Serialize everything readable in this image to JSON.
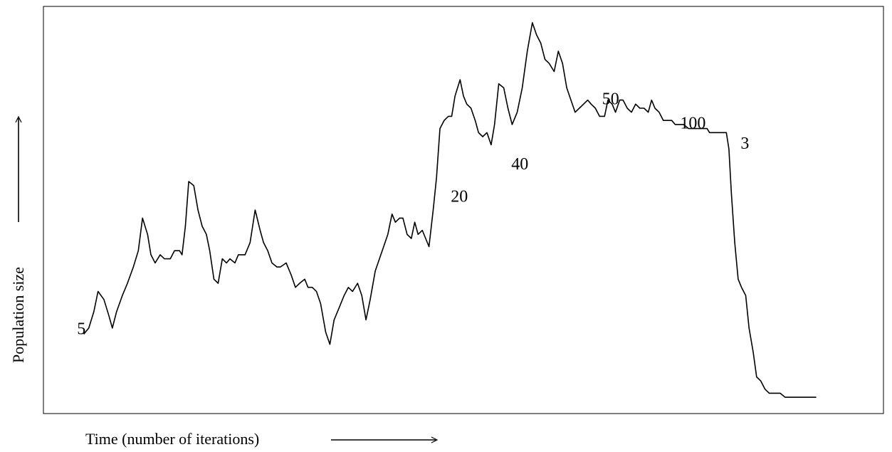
{
  "chart_data": {
    "type": "line",
    "title": "",
    "xlabel": "Time (number of iterations)",
    "ylabel": "Population size",
    "xlim": [
      0,
      100
    ],
    "ylim": [
      0,
      100
    ],
    "grid": false,
    "legend": "none",
    "line_color": "#000000",
    "series": [
      {
        "points": [
          [
            4.8,
            19.5
          ],
          [
            5.4,
            21
          ],
          [
            6.0,
            25
          ],
          [
            6.5,
            30
          ],
          [
            7.2,
            28
          ],
          [
            7.8,
            24
          ],
          [
            8.2,
            21
          ],
          [
            8.7,
            25
          ],
          [
            9.4,
            29
          ],
          [
            10.0,
            32
          ],
          [
            10.7,
            36
          ],
          [
            11.3,
            40
          ],
          [
            11.8,
            48
          ],
          [
            12.4,
            44
          ],
          [
            12.8,
            39
          ],
          [
            13.3,
            37
          ],
          [
            13.9,
            39
          ],
          [
            14.4,
            38
          ],
          [
            15.1,
            38
          ],
          [
            15.6,
            40
          ],
          [
            16.2,
            40
          ],
          [
            16.5,
            39
          ],
          [
            16.9,
            46
          ],
          [
            17.3,
            57
          ],
          [
            17.9,
            56
          ],
          [
            18.4,
            50
          ],
          [
            18.9,
            46
          ],
          [
            19.4,
            44
          ],
          [
            19.8,
            40
          ],
          [
            20.3,
            33
          ],
          [
            20.8,
            32
          ],
          [
            21.3,
            38
          ],
          [
            21.8,
            37
          ],
          [
            22.2,
            38
          ],
          [
            22.8,
            37
          ],
          [
            23.2,
            39
          ],
          [
            23.6,
            39
          ],
          [
            24.0,
            39
          ],
          [
            24.6,
            42
          ],
          [
            25.2,
            50
          ],
          [
            25.8,
            45
          ],
          [
            26.2,
            42
          ],
          [
            26.7,
            40
          ],
          [
            27.2,
            37
          ],
          [
            27.8,
            36
          ],
          [
            28.2,
            36
          ],
          [
            28.9,
            37
          ],
          [
            29.5,
            34
          ],
          [
            30.0,
            31
          ],
          [
            30.5,
            32
          ],
          [
            31.1,
            33
          ],
          [
            31.5,
            31
          ],
          [
            32.0,
            31
          ],
          [
            32.5,
            30
          ],
          [
            33.0,
            27
          ],
          [
            33.6,
            20
          ],
          [
            34.1,
            17
          ],
          [
            34.6,
            23
          ],
          [
            35.2,
            26
          ],
          [
            35.8,
            29
          ],
          [
            36.3,
            31
          ],
          [
            36.8,
            30
          ],
          [
            37.4,
            32
          ],
          [
            37.9,
            29
          ],
          [
            38.4,
            23
          ],
          [
            38.9,
            28
          ],
          [
            39.5,
            35
          ],
          [
            40.0,
            38
          ],
          [
            40.5,
            41
          ],
          [
            41.0,
            44
          ],
          [
            41.5,
            49
          ],
          [
            41.9,
            47
          ],
          [
            42.4,
            48
          ],
          [
            42.8,
            48
          ],
          [
            43.3,
            44
          ],
          [
            43.8,
            43
          ],
          [
            44.2,
            47
          ],
          [
            44.6,
            44
          ],
          [
            45.1,
            45
          ],
          [
            45.5,
            43
          ],
          [
            45.9,
            41
          ],
          [
            46.4,
            50
          ],
          [
            46.8,
            58
          ],
          [
            47.2,
            70
          ],
          [
            47.7,
            72
          ],
          [
            48.2,
            73
          ],
          [
            48.6,
            73
          ],
          [
            49.0,
            78
          ],
          [
            49.6,
            82
          ],
          [
            50.0,
            78
          ],
          [
            50.4,
            76
          ],
          [
            50.9,
            75
          ],
          [
            51.4,
            72
          ],
          [
            51.8,
            69
          ],
          [
            52.3,
            68
          ],
          [
            52.8,
            69
          ],
          [
            53.3,
            66
          ],
          [
            53.7,
            71
          ],
          [
            54.2,
            81
          ],
          [
            54.8,
            80
          ],
          [
            55.3,
            75
          ],
          [
            55.8,
            71
          ],
          [
            56.4,
            74
          ],
          [
            57.0,
            80
          ],
          [
            57.6,
            89
          ],
          [
            58.2,
            96
          ],
          [
            58.7,
            93
          ],
          [
            59.2,
            91
          ],
          [
            59.7,
            87
          ],
          [
            60.2,
            86
          ],
          [
            60.8,
            84
          ],
          [
            61.3,
            89
          ],
          [
            61.8,
            86
          ],
          [
            62.3,
            80
          ],
          [
            62.8,
            77
          ],
          [
            63.3,
            74
          ],
          [
            63.8,
            75
          ],
          [
            64.3,
            76
          ],
          [
            64.8,
            77
          ],
          [
            65.2,
            76
          ],
          [
            65.7,
            75
          ],
          [
            66.2,
            73
          ],
          [
            66.8,
            73
          ],
          [
            67.2,
            77
          ],
          [
            67.7,
            76
          ],
          [
            68.1,
            74
          ],
          [
            68.6,
            77
          ],
          [
            69.0,
            77
          ],
          [
            69.5,
            75
          ],
          [
            70.0,
            74
          ],
          [
            70.5,
            76
          ],
          [
            71.0,
            75
          ],
          [
            71.5,
            75
          ],
          [
            72.0,
            74
          ],
          [
            72.4,
            77
          ],
          [
            72.8,
            75
          ],
          [
            73.3,
            74
          ],
          [
            73.8,
            72
          ],
          [
            74.3,
            72
          ],
          [
            74.8,
            72
          ],
          [
            75.2,
            71
          ],
          [
            75.6,
            71
          ],
          [
            76.2,
            71
          ],
          [
            76.8,
            70
          ],
          [
            77.4,
            70
          ],
          [
            78.0,
            70
          ],
          [
            78.6,
            70
          ],
          [
            79.0,
            70
          ],
          [
            79.3,
            69
          ],
          [
            79.8,
            69
          ],
          [
            80.3,
            69
          ],
          [
            80.7,
            69
          ],
          [
            81.3,
            69
          ],
          [
            81.6,
            65
          ],
          [
            81.9,
            54
          ],
          [
            82.3,
            42
          ],
          [
            82.7,
            33
          ],
          [
            83.1,
            31
          ],
          [
            83.6,
            29
          ],
          [
            84.0,
            21
          ],
          [
            84.5,
            15
          ],
          [
            84.9,
            9
          ],
          [
            85.4,
            8
          ],
          [
            85.9,
            6
          ],
          [
            86.4,
            5
          ],
          [
            87.0,
            5
          ],
          [
            87.7,
            5
          ],
          [
            88.3,
            4
          ],
          [
            89.0,
            4
          ],
          [
            90.0,
            4
          ],
          [
            91.0,
            4
          ],
          [
            92.0,
            4
          ]
        ]
      }
    ],
    "annotations": [
      {
        "text": "5",
        "x": 4.0,
        "y": 19.5
      },
      {
        "text": "20",
        "x": 48.5,
        "y": 52
      },
      {
        "text": "40",
        "x": 55.7,
        "y": 60
      },
      {
        "text": "50",
        "x": 66.5,
        "y": 76
      },
      {
        "text": "100",
        "x": 75.8,
        "y": 70
      },
      {
        "text": "3",
        "x": 83.0,
        "y": 65
      }
    ]
  }
}
